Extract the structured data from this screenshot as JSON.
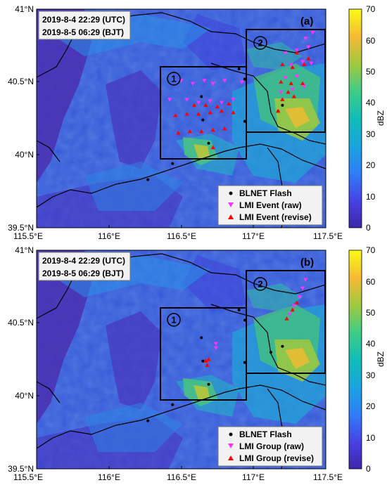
{
  "panels": [
    {
      "id": "a",
      "panel_label": "(a)",
      "time_utc": "2019-8-4 22:29 (UTC)",
      "time_bjt": "2019-8-5 06:29 (BJT)",
      "region1_label": "①",
      "region2_label": "②",
      "legend": [
        {
          "label": "BLNET Flash",
          "marker": "dot",
          "color": "#000000"
        },
        {
          "label": "LMI Event (raw)",
          "marker": "triangle-down",
          "color": "#ff33ff"
        },
        {
          "label": "LMI Event (revise)",
          "marker": "triangle-up",
          "color": "#ff0000"
        }
      ]
    },
    {
      "id": "b",
      "panel_label": "(b)",
      "time_utc": "2019-8-4 22:29 (UTC)",
      "time_bjt": "2019-8-5 06:29 (BJT)",
      "region1_label": "①",
      "region2_label": "②",
      "legend": [
        {
          "label": "BLNET Flash",
          "marker": "dot",
          "color": "#000000"
        },
        {
          "label": "LMI Group (raw)",
          "marker": "triangle-down",
          "color": "#ff33ff"
        },
        {
          "label": "LMI Group (revise)",
          "marker": "triangle-up",
          "color": "#ff0000"
        }
      ]
    }
  ],
  "axes": {
    "lon_ticks": [
      "115.5°E",
      "116°E",
      "116.5°E",
      "117°E",
      "117.5°E"
    ],
    "lat_ticks": [
      "41°N",
      "40.5°N",
      "40°N",
      "39.5°N"
    ]
  },
  "colorbar": {
    "label": "dBZ",
    "ticks": [
      "70",
      "60",
      "50",
      "40",
      "30",
      "20",
      "10",
      "0"
    ],
    "range": [
      0,
      70
    ],
    "colors": [
      "#3e26a8",
      "#4741e4",
      "#2f7ef8",
      "#1aa3df",
      "#10bdb8",
      "#3ccc88",
      "#a1c93e",
      "#f4b935",
      "#f9fb15"
    ]
  },
  "chart_data": {
    "type": "scatter",
    "xlim": [
      115.5,
      117.5
    ],
    "ylim": [
      39.5,
      41.0
    ],
    "regions": [
      {
        "name": "①",
        "lon": [
          116.38,
          116.98
        ],
        "lat": [
          39.98,
          40.61
        ]
      },
      {
        "name": "②",
        "lon": [
          116.98,
          117.49
        ],
        "lat": [
          40.16,
          40.88
        ]
      }
    ],
    "panel_a": {
      "blnet_flash": [
        [
          116.27,
          39.83
        ],
        [
          116.44,
          39.94
        ],
        [
          116.64,
          40.4
        ],
        [
          116.65,
          40.24
        ],
        [
          116.94,
          40.23
        ],
        [
          116.94,
          40.52
        ],
        [
          116.9,
          40.59
        ],
        [
          116.69,
          40.08
        ],
        [
          117.17,
          40.3
        ],
        [
          117.2,
          40.34
        ]
      ],
      "lmi_event_raw": [
        [
          116.5,
          40.51
        ],
        [
          116.58,
          40.49
        ],
        [
          116.66,
          40.51
        ],
        [
          116.72,
          40.49
        ],
        [
          116.8,
          40.51
        ],
        [
          116.54,
          40.38
        ],
        [
          116.62,
          40.36
        ],
        [
          116.7,
          40.37
        ],
        [
          116.78,
          40.36
        ],
        [
          116.86,
          40.38
        ],
        [
          116.42,
          40.38
        ],
        [
          116.92,
          40.5
        ],
        [
          117.22,
          40.7
        ],
        [
          117.3,
          40.72
        ],
        [
          117.38,
          40.74
        ],
        [
          117.26,
          40.62
        ],
        [
          117.34,
          40.64
        ],
        [
          117.4,
          40.63
        ],
        [
          117.22,
          40.53
        ],
        [
          117.3,
          40.54
        ],
        [
          117.19,
          40.43
        ],
        [
          117.27,
          40.45
        ],
        [
          117.35,
          40.47
        ],
        [
          117.36,
          40.8
        ],
        [
          117.41,
          40.84
        ]
      ],
      "lmi_event_revise": [
        [
          116.46,
          40.27
        ],
        [
          116.54,
          40.28
        ],
        [
          116.62,
          40.28
        ],
        [
          116.7,
          40.29
        ],
        [
          116.78,
          40.3
        ],
        [
          116.86,
          40.29
        ],
        [
          116.48,
          40.15
        ],
        [
          116.56,
          40.16
        ],
        [
          116.64,
          40.16
        ],
        [
          116.72,
          40.17
        ],
        [
          116.8,
          40.18
        ],
        [
          116.59,
          40.34
        ],
        [
          116.67,
          40.34
        ],
        [
          116.75,
          40.33
        ],
        [
          116.83,
          40.35
        ],
        [
          116.72,
          40.05
        ],
        [
          117.2,
          40.62
        ],
        [
          117.27,
          40.6
        ],
        [
          117.35,
          40.62
        ],
        [
          117.19,
          40.5
        ],
        [
          117.26,
          40.49
        ],
        [
          117.34,
          40.49
        ],
        [
          117.2,
          40.38
        ],
        [
          117.28,
          40.4
        ],
        [
          117.17,
          40.3
        ],
        [
          117.24,
          40.43
        ],
        [
          117.3,
          40.7
        ],
        [
          117.38,
          40.66
        ]
      ]
    },
    "panel_b": {
      "blnet_flash": [
        [
          116.27,
          39.83
        ],
        [
          116.44,
          39.94
        ],
        [
          116.64,
          40.4
        ],
        [
          116.65,
          40.24
        ],
        [
          116.94,
          40.23
        ],
        [
          116.94,
          40.52
        ],
        [
          116.9,
          40.59
        ],
        [
          116.69,
          40.08
        ],
        [
          117.12,
          40.3
        ],
        [
          117.2,
          40.34
        ]
      ],
      "lmi_group_raw": [
        [
          116.74,
          40.36
        ],
        [
          116.74,
          40.33
        ],
        [
          117.36,
          40.8
        ],
        [
          117.34,
          40.74
        ],
        [
          117.32,
          40.68
        ],
        [
          117.28,
          40.62
        ],
        [
          117.25,
          40.56
        ]
      ],
      "lmi_group_revise": [
        [
          116.67,
          40.24
        ],
        [
          116.69,
          40.25
        ],
        [
          116.68,
          40.21
        ],
        [
          117.3,
          40.64
        ],
        [
          117.27,
          40.59
        ],
        [
          117.23,
          40.53
        ]
      ]
    }
  }
}
